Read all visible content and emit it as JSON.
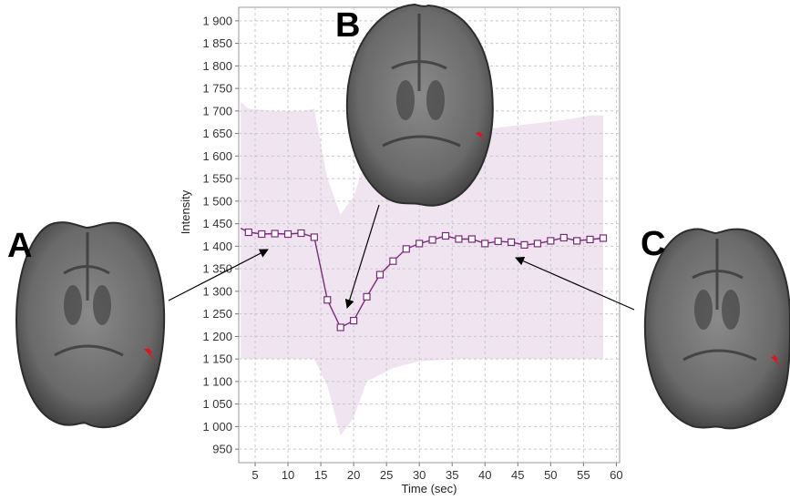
{
  "chart_data": {
    "type": "line",
    "xlabel": "Time (sec)",
    "ylabel": "Intensity",
    "xlim": [
      2.5,
      60.5
    ],
    "ylim": [
      920,
      1930
    ],
    "xticks": [
      5,
      10,
      15,
      20,
      25,
      30,
      35,
      40,
      45,
      50,
      55,
      60
    ],
    "xtick_labels": [
      "5",
      "10",
      "15",
      "20",
      "25",
      "30",
      "35",
      "40",
      "45",
      "50",
      "55",
      "60"
    ],
    "yticks": [
      950,
      1000,
      1050,
      1100,
      1150,
      1200,
      1250,
      1300,
      1350,
      1400,
      1450,
      1500,
      1550,
      1600,
      1650,
      1700,
      1750,
      1800,
      1850,
      1900
    ],
    "ytick_labels": [
      "950",
      "1 000",
      "1 050",
      "1 100",
      "1 150",
      "1 200",
      "1 250",
      "1 300",
      "1 350",
      "1 400",
      "1 450",
      "1 500",
      "1 550",
      "1 600",
      "1 650",
      "1 700",
      "1 750",
      "1 800",
      "1 850",
      "1 900"
    ],
    "grid": true,
    "series": [
      {
        "color": "#7b2a7b",
        "marker": "square",
        "x": [
          2.8,
          4,
          6,
          8,
          10,
          12,
          14,
          16,
          18,
          20,
          22,
          24,
          26,
          28,
          30,
          32,
          34,
          36,
          38,
          40,
          42,
          44,
          46,
          48,
          50,
          52,
          54,
          56,
          58
        ],
        "y": [
          1440,
          1431,
          1427,
          1428,
          1427,
          1429,
          1420,
          1281,
          1220,
          1235,
          1288,
          1337,
          1367,
          1394,
          1406,
          1414,
          1423,
          1416,
          1416,
          1406,
          1411,
          1409,
          1403,
          1406,
          1412,
          1419,
          1412,
          1415,
          1418
        ],
        "markers_from_index": 1
      }
    ],
    "band": {
      "color": "#efe4f0",
      "x": [
        2.8,
        4,
        8,
        12,
        14,
        16,
        18,
        20,
        22,
        26,
        30,
        36,
        40,
        46,
        52,
        56,
        58
      ],
      "upper": [
        1720,
        1705,
        1700,
        1700,
        1705,
        1550,
        1470,
        1510,
        1600,
        1650,
        1650,
        1660,
        1660,
        1670,
        1680,
        1690,
        1690
      ],
      "lower": [
        1150,
        1150,
        1150,
        1150,
        1150,
        1090,
        980,
        1020,
        1100,
        1130,
        1145,
        1150,
        1150,
        1150,
        1150,
        1150,
        1150
      ]
    },
    "arrow_color": "#000000"
  },
  "panels": [
    {
      "letter": "A"
    },
    {
      "letter": "B"
    },
    {
      "letter": "C"
    }
  ],
  "images": {
    "brain_fill": "#6f6f6f",
    "brain_edge": "#2d2d2d",
    "marker_arrow_color": "#e0141c"
  }
}
